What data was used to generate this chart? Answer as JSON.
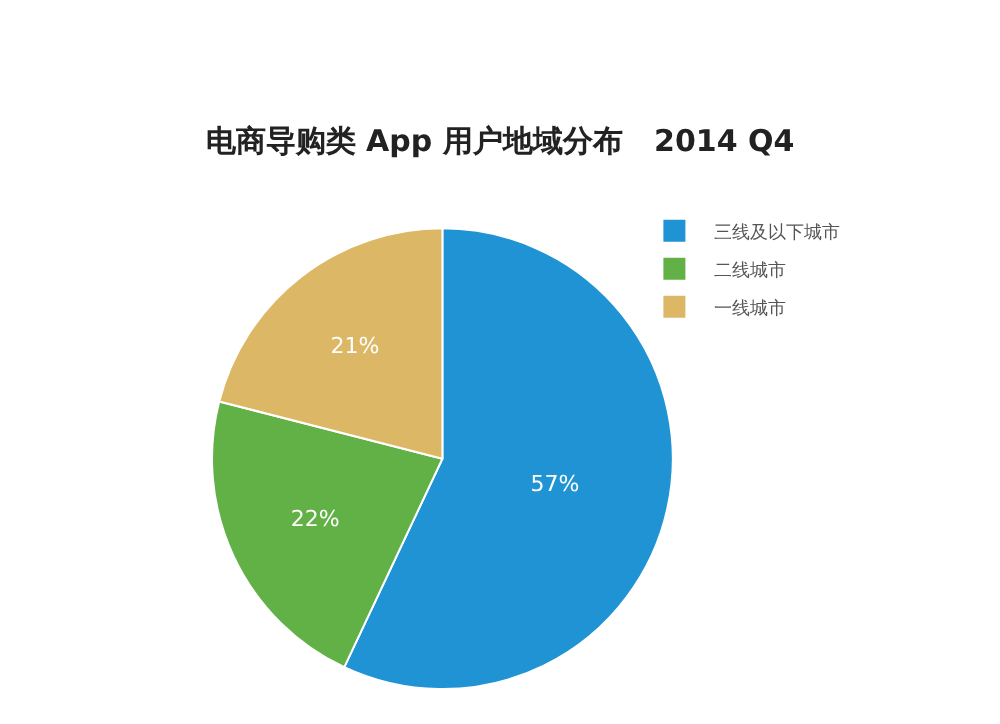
{
  "chart_data": {
    "type": "pie",
    "title": "电商导购类 App 用户地域分布   2014 Q4",
    "categories": [
      "三线及以下城市",
      "二线城市",
      "一线城市"
    ],
    "values": [
      57,
      22,
      21
    ],
    "colors": [
      "#1f93d3",
      "#62b146",
      "#dcb766"
    ],
    "value_labels": [
      "57%",
      "22%",
      "21%"
    ],
    "legend": "top right"
  }
}
